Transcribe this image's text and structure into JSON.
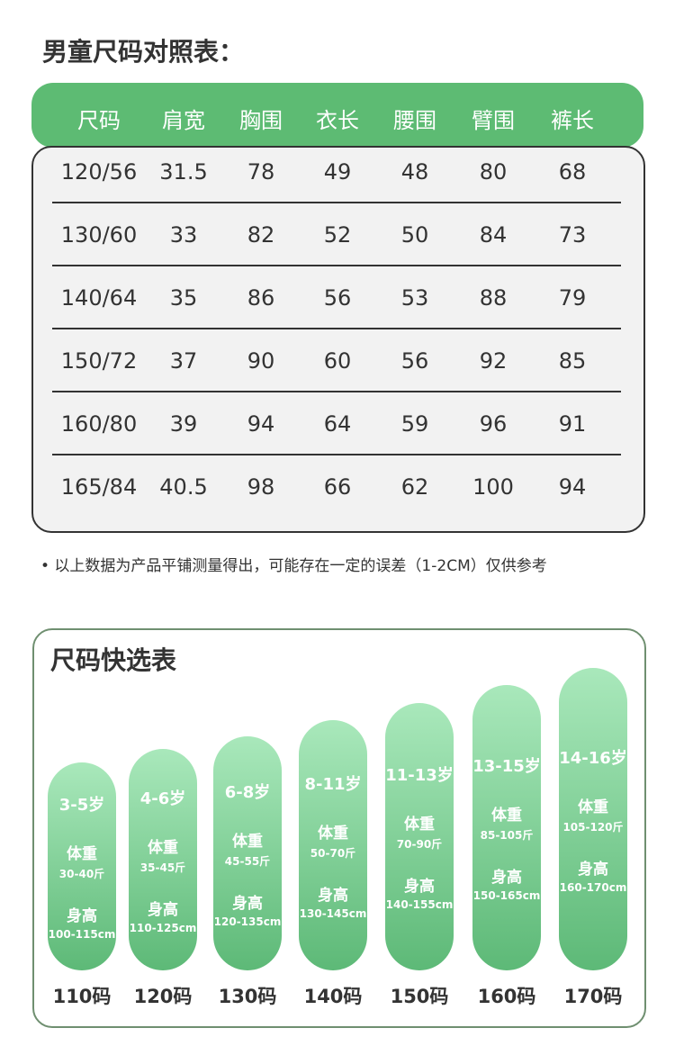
{
  "header": {
    "title": "男童尺码对照表："
  },
  "table": {
    "columns": [
      "尺码",
      "肩宽",
      "胸围",
      "衣长",
      "腰围",
      "臂围",
      "裤长"
    ],
    "rows": [
      [
        "120/56",
        "31.5",
        "78",
        "49",
        "48",
        "80",
        "68"
      ],
      [
        "130/60",
        "33",
        "82",
        "52",
        "50",
        "84",
        "73"
      ],
      [
        "140/64",
        "35",
        "86",
        "56",
        "53",
        "88",
        "79"
      ],
      [
        "150/72",
        "37",
        "90",
        "60",
        "56",
        "92",
        "85"
      ],
      [
        "160/80",
        "39",
        "94",
        "64",
        "59",
        "96",
        "91"
      ],
      [
        "165/84",
        "40.5",
        "98",
        "66",
        "62",
        "100",
        "94"
      ]
    ]
  },
  "note": "• 以上数据为产品平铺测量得出，可能存在一定的误差（1-2CM）仅供参考",
  "quick_select": {
    "title": "尺码快选表",
    "items": [
      {
        "age": "3-5岁",
        "weight_label": "体重",
        "weight": "30-40斤",
        "height_label": "身高",
        "height": "100-115cm",
        "size": "110码"
      },
      {
        "age": "4-6岁",
        "weight_label": "体重",
        "weight": "35-45斤",
        "height_label": "身高",
        "height": "110-125cm",
        "size": "120码"
      },
      {
        "age": "6-8岁",
        "weight_label": "体重",
        "weight": "45-55斤",
        "height_label": "身高",
        "height": "120-135cm",
        "size": "130码"
      },
      {
        "age": "8-11岁",
        "weight_label": "体重",
        "weight": "50-70斤",
        "height_label": "身高",
        "height": "130-145cm",
        "size": "140码"
      },
      {
        "age": "11-13岁",
        "weight_label": "体重",
        "weight": "70-90斤",
        "height_label": "身高",
        "height": "140-155cm",
        "size": "150码"
      },
      {
        "age": "13-15岁",
        "weight_label": "体重",
        "weight": "85-105斤",
        "height_label": "身高",
        "height": "150-165cm",
        "size": "160码"
      },
      {
        "age": "14-16岁",
        "weight_label": "体重",
        "weight": "105-120斤",
        "height_label": "身高",
        "height": "160-170cm",
        "size": "170码"
      }
    ]
  }
}
